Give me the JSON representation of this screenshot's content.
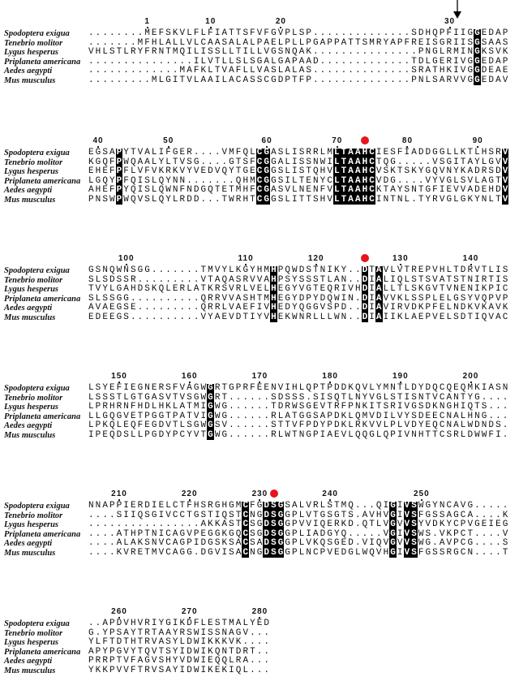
{
  "species": [
    "Spodoptera exigua",
    "Tenebrio molitor",
    "Lygus hesperus",
    "Priplaneta americana",
    "Aedes aegypti",
    "Mus musculus"
  ],
  "colors": {
    "highlight_bg": "#000000",
    "highlight_fg": "#ffffff",
    "marker_dot": "#e8141b",
    "arrow": "#000000"
  },
  "blocks": [
    {
      "ruler": [
        1,
        10,
        20,
        30
      ],
      "rows": [
        "........MEFSKVLFLFIATTSFVFGVPLSP..............SDHQPFIIGGEDAP",
        ".......MFHLALLVLCAASALALPAELPLLPGAPPATTSMRYAPFREISGRIISGSAAS",
        "VHLSTLRYFRNTMQILISSLLTILLVGSNQAK...............PNGLRMINGKSVK",
        "...............ILVTLLSLSGALGAPAAD.............TDLGERIVGGEDAP",
        ".............MAFKLTVAFLLVASLALAS..............SRATHKIVGGDEAE",
        ".........MLGITVLAAILACASSCGDPTFP..............PNLSARVVGGEDAV"
      ],
      "highlight_columns": [
        56
      ],
      "markers": [
        {
          "type": "arrow-icon",
          "residue": 30
        }
      ]
    },
    {
      "ruler": [
        40,
        50,
        60,
        70,
        80,
        90
      ],
      "rows": [
        "EGSAPYTVALIFGER....VMFQLCGASLISRRLMLTAAHCIESFIADDGGLLKTLHSRV",
        "KGQFPWQAALYLTVSG....GTSFCGGALISSNWILTAAHCTQG.....VSGITAYLGVV",
        "EHEFPFLVFVKRKVYVEDVQYTGECGGSLISTQHVLTAAHCVSKTSKYGQVNYKADRSDV",
        "LGQYPFQISLQYNN.......QHMCGGSILTENYCLTAAHCVDG....VYVGLSVLAGTV",
        "AHEFPYQISLQWNFNDGQTETMHFCGASVLNENFVLTAAHCKTAYSNTGFIEVVADEHDV",
        "PNSWPWQVSLQYLRDD...TWRHTCGGSLITTSHVLTAAHCINTNL.TYRVGLGKYNLTV"
      ],
      "highlight_columns": [
        5,
        25,
        26,
        36,
        37,
        38,
        39,
        40,
        41,
        60
      ],
      "markers": [
        {
          "type": "red-dot",
          "residue": 74
        }
      ]
    },
    {
      "ruler": [
        100,
        110,
        120,
        130,
        140
      ],
      "rows": [
        "GSNQWNSGG.......TMVYLKGYHMHPQWDSTNIKY..DTAVLVTREPVHLTDRVTLIS",
        "SLSDSSR.........VTAQASRVVAHPSYSSSTLAN..DIALIQLSTSVATSTNIRTIS",
        "TVYLGAHDSKQLERLATKRSVRLVELHEGYVGTEQRIVHDIALLTLSKGVTVNENIKPIC",
        "SLSSGG..........QRRVVASHTMHEGYDPYDQWIN.DIAVVKLSSPLELGSYVQPVP",
        "AVAEGSE.........QRRLVAEFIVHEDYQGGVSPD..DIAVIRVDKPFELNDKVKAVK",
        "EDEEGS..........VYAEVDTIYVHEKWNRLLLWN..DIAIIKLAEPVELSDTIQVAC"
      ],
      "highlight_columns": [
        27,
        40,
        42
      ],
      "markers": [
        {
          "type": "red-dot",
          "residue": 125
        }
      ]
    },
    {
      "ruler": [
        150,
        160,
        170,
        180,
        190,
        200
      ],
      "rows": [
        "LSYEFIEGNERSFVAGWGRTGPRFEENVIHLQPTPDDKQVLYMNTLDYDQCQEQMKIASN",
        "LSSSTLGTGASVTVSGWGRT......SDSSS.SISQTLNYVGLSTISNTVCANTYG....",
        "LPRHRNFHDLHKLATMIGWG......TDRWSGEVTRFPNKITSRIVGSDKNGHIQTS...",
        "LLGQGVETPGGTPATVIGWG......RLATGGSAPDKLQMVDILVYSDEECNALHNG...",
        "LPKQLEQFEGDVTLSGWGSV......STTVFPDYPDKLRKVVLPLVDYEQCNALWDNDS.",
        "IPEQDSLLPGDYPCYVTGWG......RLWTNGPIAEVLQQGLQPIVNHTTCSRLDWWFI."
      ],
      "highlight_columns": [
        18
      ],
      "markers": []
    },
    {
      "ruler": [
        210,
        220,
        230,
        240,
        250
      ],
      "rows": [
        "NNAPPIERDIELCTFHSRGHGMCFGDSGSALVRLSTMQ...QIGIVSWGYNCAVG.....",
        "....SIIQSGIVCCTGSTIQSTCNGDSGGPLVTGSGTS.AVHVGIVSFGSSAGCA....K",
        "................AKKASTCSGDSGGPVVIQERKD.QTLVGVVSYVDKYCPVGEIEG",
        "....ATHPTNICAGVPEGGKGQCSGDSGGPLIADGYQ.....VGIVSWS.VKPCT....V",
        "....ALAKSNVCAGPIDGSKSACSADSGGPLVKQSGED.VIQVGVVSWG.AVPCG....S",
        "....KVRETMVCAGG.DGVISACNGDSGGPLNCPVEDGLWQVHGIVSFGSSRGCN....T"
      ],
      "highlight_columns": [
        23,
        26,
        27,
        28,
        44,
        46,
        47
      ],
      "markers": [
        {
          "type": "red-dot",
          "residue": 232
        }
      ]
    },
    {
      "ruler": [
        260,
        270,
        280
      ],
      "rows": [
        "..APDVHVRIYGIKDFLESTMALYED",
        "G.YPSAYTRTAAYRSWISSNAGV...",
        "YLFTDTHTRVASYLDWIKKKVK....",
        "APYPGVYTQVTSYIDWIKQNTDRT..",
        "PRRPTVFAGVSHYVDWIEQQLRA...",
        "YKKPVVFTRVSAYIDWIKEKIQL..."
      ],
      "highlight_columns": [],
      "markers": []
    }
  ]
}
